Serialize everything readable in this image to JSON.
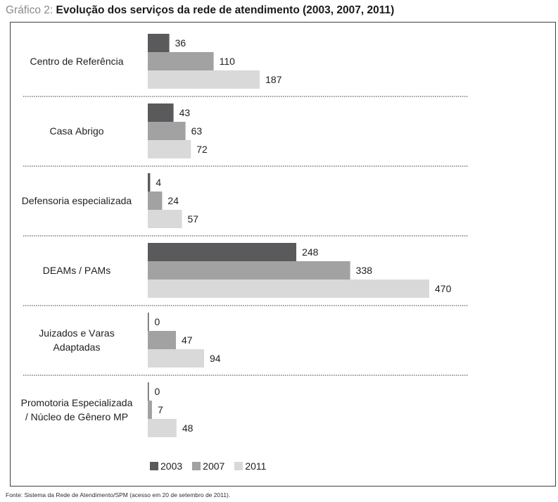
{
  "chart_data": {
    "type": "bar",
    "orientation": "horizontal",
    "figure_label": "Gráfico 2:",
    "title": "Evolução dos serviços da rede de atendimento (2003, 2007, 2011)",
    "categories": [
      "Centro de Referência",
      "Casa Abrigo",
      "Defensoria especializada",
      "DEAMs / PAMs",
      "Juizados e Varas Adaptadas",
      "Promotoria Especializada / Núcleo de Gênero MP"
    ],
    "series": [
      {
        "name": "2003",
        "color": "#5a5a5c",
        "values": [
          36,
          43,
          4,
          248,
          0,
          0
        ]
      },
      {
        "name": "2007",
        "color": "#a2a2a2",
        "values": [
          110,
          63,
          24,
          338,
          47,
          7
        ]
      },
      {
        "name": "2011",
        "color": "#d9d9d9",
        "values": [
          187,
          72,
          57,
          470,
          94,
          48
        ]
      }
    ],
    "legend": "bottom",
    "grid": false,
    "source": "Fonte: Sistema da Rede de Atendimento/SPM (acesso em 20 de setembro de 2011)."
  }
}
